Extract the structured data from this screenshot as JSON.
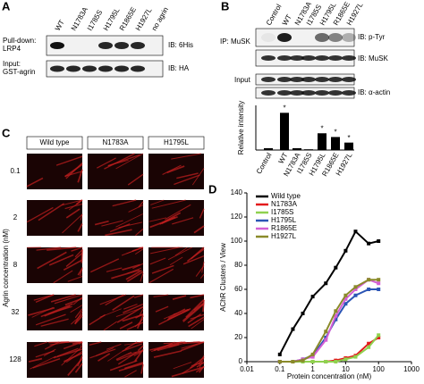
{
  "panels": {
    "a": {
      "letter": "A",
      "lanes": [
        "WT",
        "N1783A",
        "I1785S",
        "H1795L",
        "R1865E",
        "H1927L",
        "no agrin"
      ],
      "rows": [
        {
          "label": [
            "Pull-down:",
            "LRP4"
          ],
          "ib": "IB: 6His"
        },
        {
          "label": [
            "Input:",
            "GST-agrin"
          ],
          "ib": "IB: HA"
        }
      ]
    },
    "b": {
      "letter": "B",
      "lanes": [
        "Control",
        "WT",
        "N1783A",
        "I1785S",
        "H1795L",
        "R1865E",
        "H1927L"
      ],
      "ip": "IP: MuSK",
      "input": "Input",
      "ib": [
        "IB: p-Tyr",
        "IB: MuSK",
        "IB: α-actin"
      ]
    },
    "c": {
      "letter": "C",
      "columns": [
        "Wild type",
        "N1783A",
        "H1795L"
      ],
      "rows": [
        "0.1",
        "2",
        "8",
        "32",
        "128"
      ],
      "ylabel": "Agrin concentration (nM)"
    },
    "d": {
      "letter": "D"
    }
  },
  "chart_data": [
    {
      "type": "bar",
      "ylabel": "Relative intensity",
      "categories": [
        "Control",
        "WT",
        "N1783A",
        "I1785S",
        "H1795L",
        "R1865E",
        "H1927L"
      ],
      "values": [
        0.05,
        1.0,
        0.05,
        0.02,
        0.45,
        0.35,
        0.2
      ],
      "color": "#000000",
      "ylim": [
        0,
        1.2
      ],
      "annotations": [
        {
          "text": "*",
          "category": "WT"
        },
        {
          "text": "*",
          "category": "H1795L"
        },
        {
          "text": "*",
          "category": "R1865E"
        },
        {
          "text": "*",
          "category": "H1927L"
        }
      ]
    },
    {
      "type": "line",
      "xlabel": "Protein concentration (nM)",
      "ylabel": "AChR Clusters / View",
      "xscale": "log",
      "x": [
        0.1,
        0.25,
        0.5,
        1,
        2.5,
        5,
        10,
        20,
        50,
        100
      ],
      "series": [
        {
          "name": "Wild type",
          "color": "#000000",
          "values": [
            6,
            27,
            40,
            54,
            65,
            78,
            92,
            108,
            98,
            100
          ]
        },
        {
          "name": "N1783A",
          "color": "#e31a1c",
          "values": [
            0,
            0,
            0,
            0,
            0,
            1,
            3,
            5,
            15,
            20
          ]
        },
        {
          "name": "I1785S",
          "color": "#8fd14f",
          "values": [
            0,
            0,
            0,
            0,
            0,
            0,
            2,
            4,
            12,
            22
          ]
        },
        {
          "name": "H1795L",
          "color": "#2b55b5",
          "values": [
            0,
            0,
            2,
            5,
            20,
            35,
            48,
            55,
            60,
            60
          ]
        },
        {
          "name": "R1865E",
          "color": "#d45fd4",
          "values": [
            0,
            0,
            2,
            4,
            18,
            38,
            52,
            60,
            68,
            65
          ]
        },
        {
          "name": "H1927L",
          "color": "#8a8a2a",
          "values": [
            0,
            0,
            1,
            6,
            25,
            42,
            55,
            62,
            68,
            68
          ]
        }
      ],
      "xlim": [
        0.01,
        1000
      ],
      "xticks": [
        0.01,
        0.1,
        1,
        10,
        100,
        1000
      ],
      "ylim": [
        0,
        140
      ],
      "yticks": [
        0,
        20,
        40,
        60,
        80,
        100,
        120,
        140
      ],
      "legend": "upper left"
    }
  ]
}
